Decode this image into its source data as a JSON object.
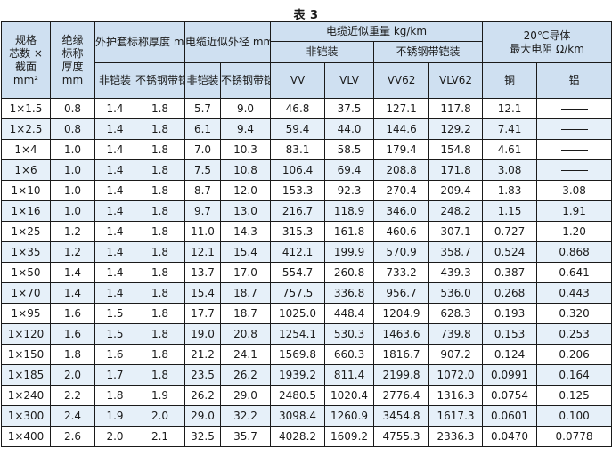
{
  "title": "表 3",
  "headers": {
    "size": [
      "规格",
      "芯数 ×",
      "截面",
      "mm²"
    ],
    "insulation": [
      "绝缘",
      "标称",
      "厚度",
      "mm"
    ],
    "sheath": "外护套标称厚度 mm",
    "diameter": "电缆近似外径 mm",
    "weight": "电缆近似重量 kg/km",
    "resistance": [
      "20℃导体",
      "最大电阻 Ω/km"
    ],
    "unarmored": "非铠装",
    "ss_armored": "不锈钢带铠装",
    "non_armored_short": "非铠装",
    "ss_armored_short": "不锈钢带铠装",
    "vv": "VV",
    "vlv": "VLV",
    "vv62": "VV62",
    "vlv62": "VLV62",
    "copper": "铜",
    "aluminum": "铝"
  },
  "rows": [
    {
      "size": "1×1.5",
      "ins": "0.8",
      "sh_na": "1.4",
      "sh_ss": "1.8",
      "od_na": "5.7",
      "od_ss": "9.0",
      "vv": "46.8",
      "vlv": "37.5",
      "vv62": "127.1",
      "vlv62": "117.8",
      "cu": "12.1",
      "al": ""
    },
    {
      "size": "1×2.5",
      "ins": "0.8",
      "sh_na": "1.4",
      "sh_ss": "1.8",
      "od_na": "6.1",
      "od_ss": "9.4",
      "vv": "59.4",
      "vlv": "44.0",
      "vv62": "144.6",
      "vlv62": "129.2",
      "cu": "7.41",
      "al": ""
    },
    {
      "size": "1×4",
      "ins": "1.0",
      "sh_na": "1.4",
      "sh_ss": "1.8",
      "od_na": "7.0",
      "od_ss": "10.3",
      "vv": "83.1",
      "vlv": "58.5",
      "vv62": "179.4",
      "vlv62": "154.8",
      "cu": "4.61",
      "al": ""
    },
    {
      "size": "1×6",
      "ins": "1.0",
      "sh_na": "1.4",
      "sh_ss": "1.8",
      "od_na": "7.5",
      "od_ss": "10.8",
      "vv": "106.4",
      "vlv": "69.4",
      "vv62": "208.8",
      "vlv62": "171.8",
      "cu": "3.08",
      "al": ""
    },
    {
      "size": "1×10",
      "ins": "1.0",
      "sh_na": "1.4",
      "sh_ss": "1.8",
      "od_na": "8.7",
      "od_ss": "12.0",
      "vv": "153.3",
      "vlv": "92.3",
      "vv62": "270.4",
      "vlv62": "209.4",
      "cu": "1.83",
      "al": "3.08"
    },
    {
      "size": "1×16",
      "ins": "1.0",
      "sh_na": "1.4",
      "sh_ss": "1.8",
      "od_na": "9.7",
      "od_ss": "13.0",
      "vv": "216.7",
      "vlv": "118.9",
      "vv62": "346.0",
      "vlv62": "248.2",
      "cu": "1.15",
      "al": "1.91"
    },
    {
      "size": "1×25",
      "ins": "1.2",
      "sh_na": "1.4",
      "sh_ss": "1.8",
      "od_na": "11.0",
      "od_ss": "14.3",
      "vv": "315.3",
      "vlv": "161.8",
      "vv62": "460.6",
      "vlv62": "307.1",
      "cu": "0.727",
      "al": "1.20"
    },
    {
      "size": "1×35",
      "ins": "1.2",
      "sh_na": "1.4",
      "sh_ss": "1.8",
      "od_na": "12.1",
      "od_ss": "15.4",
      "vv": "412.1",
      "vlv": "199.9",
      "vv62": "570.9",
      "vlv62": "358.7",
      "cu": "0.524",
      "al": "0.868"
    },
    {
      "size": "1×50",
      "ins": "1.4",
      "sh_na": "1.4",
      "sh_ss": "1.8",
      "od_na": "13.7",
      "od_ss": "17.0",
      "vv": "554.7",
      "vlv": "260.8",
      "vv62": "733.2",
      "vlv62": "439.3",
      "cu": "0.387",
      "al": "0.641"
    },
    {
      "size": "1×70",
      "ins": "1.4",
      "sh_na": "1.4",
      "sh_ss": "1.8",
      "od_na": "15.4",
      "od_ss": "18.7",
      "vv": "757.5",
      "vlv": "336.8",
      "vv62": "956.7",
      "vlv62": "536.0",
      "cu": "0.268",
      "al": "0.443"
    },
    {
      "size": "1×95",
      "ins": "1.6",
      "sh_na": "1.5",
      "sh_ss": "1.8",
      "od_na": "17.7",
      "od_ss": "18.7",
      "vv": "1025.0",
      "vlv": "448.4",
      "vv62": "1204.9",
      "vlv62": "628.3",
      "cu": "0.193",
      "al": "0.320"
    },
    {
      "size": "1×120",
      "ins": "1.6",
      "sh_na": "1.5",
      "sh_ss": "1.8",
      "od_na": "19.0",
      "od_ss": "20.8",
      "vv": "1254.1",
      "vlv": "530.3",
      "vv62": "1463.6",
      "vlv62": "739.8",
      "cu": "0.153",
      "al": "0.253"
    },
    {
      "size": "1×150",
      "ins": "1.8",
      "sh_na": "1.6",
      "sh_ss": "1.8",
      "od_na": "21.2",
      "od_ss": "24.1",
      "vv": "1569.8",
      "vlv": "660.3",
      "vv62": "1816.7",
      "vlv62": "907.2",
      "cu": "0.124",
      "al": "0.206"
    },
    {
      "size": "1×185",
      "ins": "2.0",
      "sh_na": "1.7",
      "sh_ss": "1.8",
      "od_na": "23.5",
      "od_ss": "26.2",
      "vv": "1939.2",
      "vlv": "811.4",
      "vv62": "2199.8",
      "vlv62": "1072.0",
      "cu": "0.0991",
      "al": "0.164"
    },
    {
      "size": "1×240",
      "ins": "2.2",
      "sh_na": "1.8",
      "sh_ss": "1.9",
      "od_na": "26.2",
      "od_ss": "29.0",
      "vv": "2480.5",
      "vlv": "1020.4",
      "vv62": "2776.4",
      "vlv62": "1316.3",
      "cu": "0.0754",
      "al": "0.125"
    },
    {
      "size": "1×300",
      "ins": "2.4",
      "sh_na": "1.9",
      "sh_ss": "2.0",
      "od_na": "29.0",
      "od_ss": "32.2",
      "vv": "3098.4",
      "vlv": "1260.9",
      "vv62": "3454.8",
      "vlv62": "1617.3",
      "cu": "0.0601",
      "al": "0.100"
    },
    {
      "size": "1×400",
      "ins": "2.6",
      "sh_na": "2.0",
      "sh_ss": "2.1",
      "od_na": "32.5",
      "od_ss": "35.7",
      "vv": "4028.2",
      "vlv": "1609.2",
      "vv62": "4755.3",
      "vlv62": "2336.3",
      "cu": "0.0470",
      "al": "0.0778"
    }
  ]
}
